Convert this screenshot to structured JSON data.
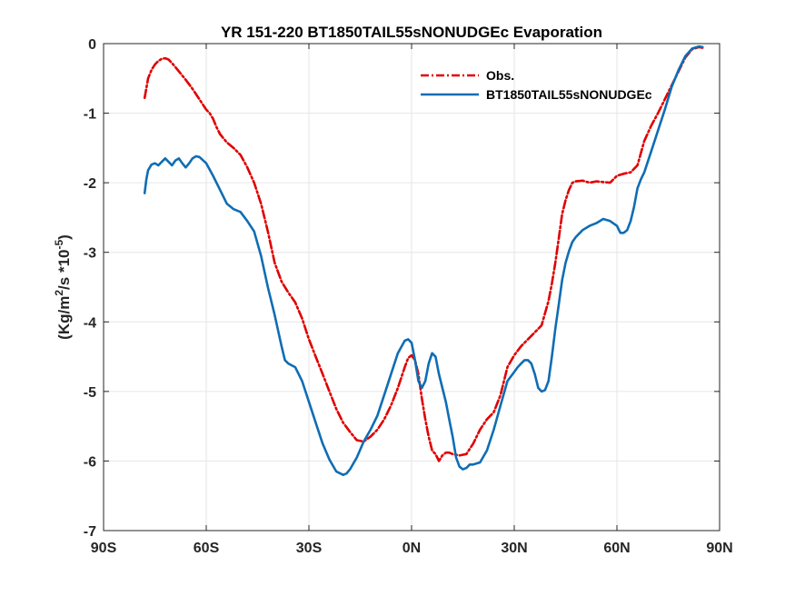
{
  "chart_data": {
    "type": "line",
    "title": "YR 151-220 BT1850TAIL55sNONUDGEc Evaporation",
    "xlabel": "",
    "ylabel": "(Kg/m2/s *10-5)",
    "ylabel_parts": {
      "pre": "(Kg/m",
      "sup1": "2",
      "mid": "/s *10",
      "sup2": "-5",
      "post": ")"
    },
    "xlim": [
      -90,
      90
    ],
    "ylim": [
      -7,
      0
    ],
    "x_ticks": [
      -90,
      -60,
      -30,
      0,
      30,
      60,
      90
    ],
    "x_tick_labels": [
      "90S",
      "60S",
      "30S",
      "0N",
      "30N",
      "60N",
      "90N"
    ],
    "y_ticks": [
      -7,
      -6,
      -5,
      -4,
      -3,
      -2,
      -1,
      0
    ],
    "y_tick_labels": [
      "-7",
      "-6",
      "-5",
      "-4",
      "-3",
      "-2",
      "-1",
      "0"
    ],
    "grid": true,
    "legend_position": "top-right",
    "series": [
      {
        "name": "Obs.",
        "color": "#e00000",
        "style": "dashdot",
        "x": [
          -78,
          -77,
          -76,
          -75,
          -74,
          -73,
          -72,
          -71,
          -70,
          -68,
          -66,
          -64,
          -62,
          -60,
          -59,
          -58,
          -57,
          -56,
          -54,
          -52,
          -50,
          -48,
          -46,
          -44,
          -42,
          -40,
          -38,
          -36,
          -34,
          -32,
          -30,
          -28,
          -26,
          -24,
          -22,
          -20,
          -18,
          -16,
          -14,
          -12,
          -10,
          -8,
          -6,
          -4,
          -2,
          -1,
          0,
          1,
          2,
          3,
          4,
          5,
          6,
          7,
          8,
          9,
          10,
          11,
          12,
          14,
          16,
          18,
          20,
          22,
          24,
          26,
          28,
          30,
          32,
          34,
          36,
          38,
          40,
          41,
          42,
          43,
          44,
          45,
          46,
          47,
          48,
          50,
          52,
          54,
          56,
          58,
          60,
          62,
          64,
          66,
          68,
          70,
          72,
          74,
          76,
          78,
          80,
          82,
          84,
          85
        ],
        "y": [
          -0.78,
          -0.5,
          -0.38,
          -0.3,
          -0.25,
          -0.22,
          -0.21,
          -0.23,
          -0.28,
          -0.4,
          -0.52,
          -0.65,
          -0.8,
          -0.95,
          -1.0,
          -1.08,
          -1.2,
          -1.3,
          -1.42,
          -1.5,
          -1.6,
          -1.78,
          -2.0,
          -2.3,
          -2.7,
          -3.15,
          -3.42,
          -3.58,
          -3.72,
          -3.95,
          -4.25,
          -4.5,
          -4.75,
          -5.0,
          -5.25,
          -5.45,
          -5.58,
          -5.7,
          -5.72,
          -5.65,
          -5.55,
          -5.4,
          -5.2,
          -4.95,
          -4.65,
          -4.52,
          -4.48,
          -4.55,
          -4.75,
          -5.1,
          -5.4,
          -5.65,
          -5.85,
          -5.9,
          -6.0,
          -5.92,
          -5.88,
          -5.88,
          -5.9,
          -5.92,
          -5.9,
          -5.75,
          -5.55,
          -5.4,
          -5.3,
          -5.05,
          -4.65,
          -4.48,
          -4.35,
          -4.25,
          -4.15,
          -4.05,
          -3.7,
          -3.45,
          -3.15,
          -2.8,
          -2.45,
          -2.25,
          -2.1,
          -2.0,
          -1.98,
          -1.97,
          -2.0,
          -1.98,
          -1.99,
          -2.0,
          -1.9,
          -1.87,
          -1.85,
          -1.75,
          -1.4,
          -1.18,
          -1.0,
          -0.8,
          -0.6,
          -0.4,
          -0.2,
          -0.08,
          -0.05,
          -0.06
        ]
      },
      {
        "name": "BT1850TAIL55sNONUDGEc",
        "color": "#0f6db4",
        "style": "solid",
        "x": [
          -78,
          -77.5,
          -77,
          -76,
          -75,
          -74,
          -73,
          -72,
          -71,
          -70,
          -69,
          -68,
          -67,
          -66,
          -65,
          -64,
          -63,
          -62,
          -60,
          -58,
          -56,
          -54,
          -52,
          -50,
          -48,
          -46,
          -44,
          -42,
          -40,
          -38,
          -37,
          -36,
          -34,
          -32,
          -30,
          -28,
          -26,
          -24,
          -22,
          -20,
          -19,
          -18,
          -16,
          -14,
          -12,
          -10,
          -8,
          -6,
          -4,
          -2,
          -1,
          0,
          1,
          2,
          3,
          4,
          5,
          6,
          7,
          8,
          9,
          10,
          11,
          12,
          13,
          14,
          15,
          16,
          17,
          18,
          20,
          22,
          24,
          26,
          28,
          30,
          31,
          32,
          33,
          34,
          35,
          36,
          37,
          38,
          39,
          40,
          41,
          42,
          43,
          44,
          45,
          46,
          47,
          48,
          50,
          52,
          54,
          56,
          58,
          60,
          61,
          62,
          63,
          64,
          65,
          66,
          67,
          68,
          70,
          72,
          74,
          76,
          78,
          80,
          82,
          84,
          85
        ],
        "y": [
          -2.15,
          -1.95,
          -1.82,
          -1.74,
          -1.72,
          -1.75,
          -1.7,
          -1.65,
          -1.7,
          -1.75,
          -1.68,
          -1.65,
          -1.72,
          -1.78,
          -1.72,
          -1.65,
          -1.62,
          -1.63,
          -1.72,
          -1.9,
          -2.1,
          -2.3,
          -2.38,
          -2.42,
          -2.55,
          -2.7,
          -3.05,
          -3.5,
          -3.9,
          -4.35,
          -4.55,
          -4.6,
          -4.65,
          -4.85,
          -5.15,
          -5.45,
          -5.75,
          -5.98,
          -6.15,
          -6.2,
          -6.18,
          -6.12,
          -5.95,
          -5.72,
          -5.55,
          -5.35,
          -5.05,
          -4.75,
          -4.45,
          -4.27,
          -4.25,
          -4.3,
          -4.55,
          -4.85,
          -4.95,
          -4.85,
          -4.6,
          -4.45,
          -4.5,
          -4.75,
          -4.95,
          -5.15,
          -5.4,
          -5.65,
          -5.95,
          -6.08,
          -6.12,
          -6.1,
          -6.05,
          -6.05,
          -6.02,
          -5.85,
          -5.55,
          -5.2,
          -4.85,
          -4.72,
          -4.65,
          -4.6,
          -4.55,
          -4.55,
          -4.6,
          -4.75,
          -4.95,
          -5.0,
          -4.98,
          -4.85,
          -4.5,
          -4.1,
          -3.75,
          -3.4,
          -3.15,
          -2.98,
          -2.85,
          -2.78,
          -2.68,
          -2.62,
          -2.58,
          -2.52,
          -2.55,
          -2.62,
          -2.72,
          -2.72,
          -2.68,
          -2.55,
          -2.35,
          -2.08,
          -1.95,
          -1.85,
          -1.55,
          -1.25,
          -0.95,
          -0.62,
          -0.38,
          -0.18,
          -0.07,
          -0.04,
          -0.05
        ]
      }
    ]
  }
}
